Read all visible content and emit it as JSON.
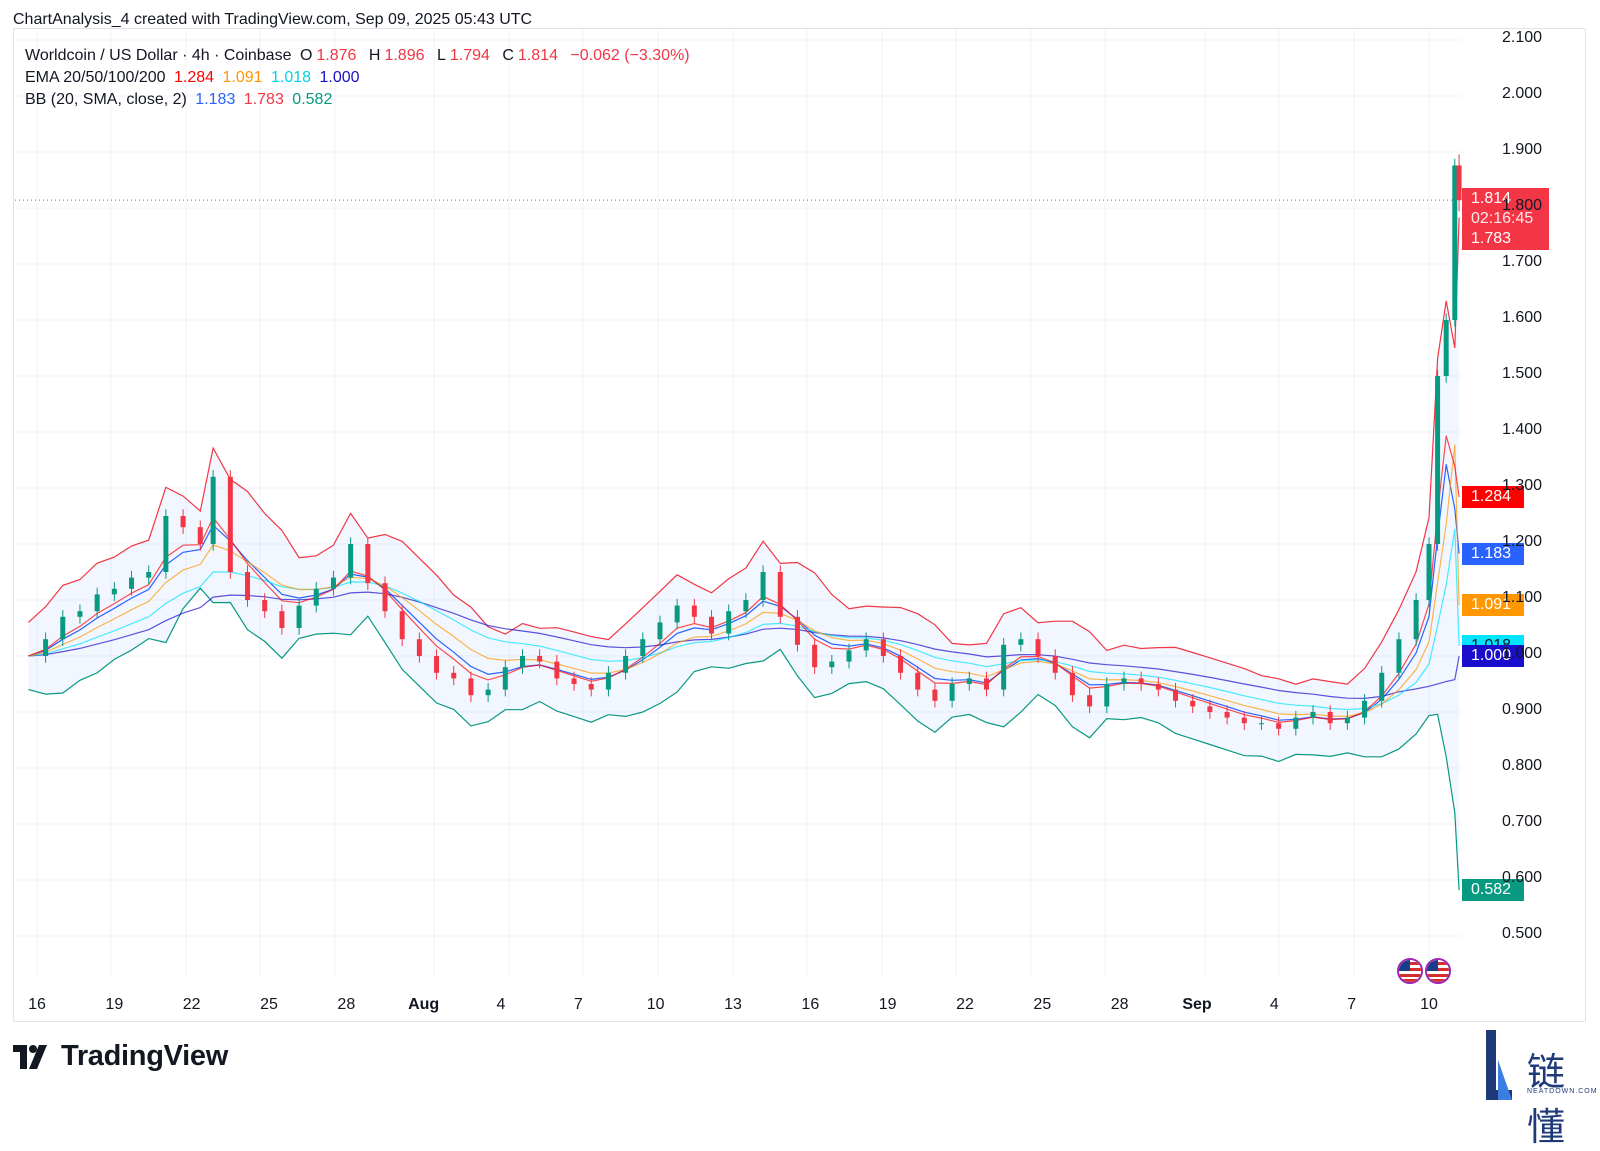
{
  "caption": "ChartAnalysis_4 created with TradingView.com, Sep 09, 2025 05:43 UTC",
  "legend": {
    "title": "Worldcoin / US Dollar · 4h · Coinbase",
    "o_label": "O",
    "o_value": "1.876",
    "h_label": "H",
    "h_value": "1.896",
    "l_label": "L",
    "l_value": "1.794",
    "c_label": "C",
    "c_value": "1.814",
    "change": "−0.062 (−3.30%)",
    "ema_label": "EMA 20/50/100/200",
    "ema20": "1.284",
    "ema50": "1.091",
    "ema100": "1.018",
    "ema200": "1.000",
    "bb_label": "BB (20, SMA, close, 2)",
    "bb_basis": "1.183",
    "bb_upper": "1.783",
    "bb_lower": "0.582"
  },
  "price_badge": {
    "price": "1.814",
    "countdown": "02:16:45",
    "upper": "1.783"
  },
  "axis_badges": [
    {
      "value": "1.284",
      "color": "#ff0000"
    },
    {
      "value": "1.183",
      "color": "#2962ff"
    },
    {
      "value": "1.091",
      "color": "#ff9800"
    },
    {
      "value": "1.018",
      "color": "#00e5ff",
      "text_color": "#131722"
    },
    {
      "value": "1.000",
      "color": "#1a0dcc"
    },
    {
      "value": "0.582",
      "color": "#089981"
    }
  ],
  "colors": {
    "up": "#089981",
    "down": "#f23645",
    "ema20": "#ff0000",
    "ema50": "#ff9800",
    "ema100": "#00e5ff",
    "ema200": "#1a0dcc",
    "bb_upper": "#f23645",
    "bb_basis": "#2962ff",
    "bb_lower": "#089981",
    "bb_fill": "#2962ff"
  },
  "footer": {
    "logo_text": "TradingView",
    "watermark": "链懂",
    "watermark_sub": "NEATDOWN.COM"
  },
  "chart_data": {
    "type": "candlestick",
    "title": "Worldcoin / US Dollar · 4h · Coinbase",
    "y_ticks": [
      "2.100",
      "2.000",
      "1.900",
      "1.800",
      "1.700",
      "1.600",
      "1.500",
      "1.400",
      "1.300",
      "1.200",
      "1.100",
      "1.000",
      "0.900",
      "0.800",
      "0.700",
      "0.600",
      "0.500"
    ],
    "ylim": [
      0.45,
      2.11
    ],
    "x_ticks": [
      {
        "label": "16",
        "date": "2025-07-16"
      },
      {
        "label": "19",
        "date": "2025-07-19"
      },
      {
        "label": "22",
        "date": "2025-07-22"
      },
      {
        "label": "25",
        "date": "2025-07-25"
      },
      {
        "label": "28",
        "date": "2025-07-28"
      },
      {
        "label": "Aug",
        "date": "2025-07-31",
        "bold": true
      },
      {
        "label": "4",
        "date": "2025-08-03"
      },
      {
        "label": "7",
        "date": "2025-08-06"
      },
      {
        "label": "10",
        "date": "2025-08-09"
      },
      {
        "label": "13",
        "date": "2025-08-12"
      },
      {
        "label": "16",
        "date": "2025-08-15"
      },
      {
        "label": "19",
        "date": "2025-08-18"
      },
      {
        "label": "22",
        "date": "2025-08-21"
      },
      {
        "label": "25",
        "date": "2025-08-24"
      },
      {
        "label": "28",
        "date": "2025-08-27"
      },
      {
        "label": "Sep",
        "date": "2025-08-30",
        "bold": true
      },
      {
        "label": "4",
        "date": "2025-09-02"
      },
      {
        "label": "7",
        "date": "2025-09-05"
      },
      {
        "label": "10",
        "date": "2025-09-08"
      }
    ],
    "x_range": [
      "2025-07-15T16:00",
      "2025-09-09T04:00"
    ],
    "close_series": {
      "name": "close",
      "x": [
        "2025-07-15T16:00",
        "2025-07-16T08:00",
        "2025-07-17T00:00",
        "2025-07-17T16:00",
        "2025-07-18T08:00",
        "2025-07-19T00:00",
        "2025-07-19T16:00",
        "2025-07-20T08:00",
        "2025-07-21T00:00",
        "2025-07-21T16:00",
        "2025-07-22T08:00",
        "2025-07-22T20:00",
        "2025-07-23T12:00",
        "2025-07-24T04:00",
        "2025-07-24T20:00",
        "2025-07-25T12:00",
        "2025-07-26T04:00",
        "2025-07-26T20:00",
        "2025-07-27T12:00",
        "2025-07-28T04:00",
        "2025-07-28T20:00",
        "2025-07-29T12:00",
        "2025-07-30T04:00",
        "2025-07-30T20:00",
        "2025-07-31T12:00",
        "2025-08-01T04:00",
        "2025-08-01T20:00",
        "2025-08-02T12:00",
        "2025-08-03T04:00",
        "2025-08-03T20:00",
        "2025-08-04T12:00",
        "2025-08-05T04:00",
        "2025-08-05T20:00",
        "2025-08-06T12:00",
        "2025-08-07T04:00",
        "2025-08-07T20:00",
        "2025-08-08T12:00",
        "2025-08-09T04:00",
        "2025-08-09T20:00",
        "2025-08-10T12:00",
        "2025-08-11T04:00",
        "2025-08-11T20:00",
        "2025-08-12T12:00",
        "2025-08-13T04:00",
        "2025-08-13T20:00",
        "2025-08-14T12:00",
        "2025-08-15T04:00",
        "2025-08-15T20:00",
        "2025-08-16T12:00",
        "2025-08-17T04:00",
        "2025-08-17T20:00",
        "2025-08-18T12:00",
        "2025-08-19T04:00",
        "2025-08-19T20:00",
        "2025-08-20T12:00",
        "2025-08-21T04:00",
        "2025-08-21T20:00",
        "2025-08-22T12:00",
        "2025-08-23T04:00",
        "2025-08-23T20:00",
        "2025-08-24T12:00",
        "2025-08-25T04:00",
        "2025-08-25T20:00",
        "2025-08-26T12:00",
        "2025-08-27T04:00",
        "2025-08-27T20:00",
        "2025-08-28T12:00",
        "2025-08-29T04:00",
        "2025-08-29T20:00",
        "2025-08-30T12:00",
        "2025-08-31T04:00",
        "2025-08-31T20:00",
        "2025-09-01T12:00",
        "2025-09-02T04:00",
        "2025-09-02T20:00",
        "2025-09-03T12:00",
        "2025-09-04T04:00",
        "2025-09-04T20:00",
        "2025-09-05T12:00",
        "2025-09-06T04:00",
        "2025-09-06T20:00",
        "2025-09-07T12:00",
        "2025-09-08T00:00",
        "2025-09-08T08:00",
        "2025-09-08T16:00",
        "2025-09-09T00:00",
        "2025-09-09T04:00"
      ],
      "y": [
        1.0,
        1.03,
        1.07,
        1.08,
        1.11,
        1.12,
        1.14,
        1.15,
        1.25,
        1.23,
        1.2,
        1.32,
        1.15,
        1.1,
        1.08,
        1.05,
        1.09,
        1.12,
        1.14,
        1.2,
        1.13,
        1.08,
        1.03,
        1.0,
        0.97,
        0.96,
        0.93,
        0.94,
        0.98,
        1.0,
        0.99,
        0.96,
        0.95,
        0.94,
        0.97,
        1.0,
        1.03,
        1.06,
        1.09,
        1.07,
        1.04,
        1.08,
        1.1,
        1.15,
        1.07,
        1.02,
        0.98,
        0.99,
        1.01,
        1.03,
        1.0,
        0.97,
        0.94,
        0.92,
        0.95,
        0.96,
        0.94,
        1.02,
        1.03,
        1.0,
        0.97,
        0.93,
        0.91,
        0.95,
        0.96,
        0.95,
        0.94,
        0.92,
        0.91,
        0.9,
        0.89,
        0.88,
        0.88,
        0.87,
        0.89,
        0.9,
        0.88,
        0.89,
        0.92,
        0.97,
        1.03,
        1.1,
        1.2,
        1.5,
        1.6,
        1.876,
        1.814
      ]
    },
    "last": {
      "open": 1.876,
      "high": 1.896,
      "low": 1.794,
      "close": 1.814,
      "change": -0.062,
      "change_pct": -3.3
    },
    "indicators": {
      "ema20": 1.284,
      "ema50": 1.091,
      "ema100": 1.018,
      "ema200": 1.0,
      "bb_basis": 1.183,
      "bb_upper": 1.783,
      "bb_lower": 0.582
    },
    "legend": "top-left",
    "grid": true
  }
}
